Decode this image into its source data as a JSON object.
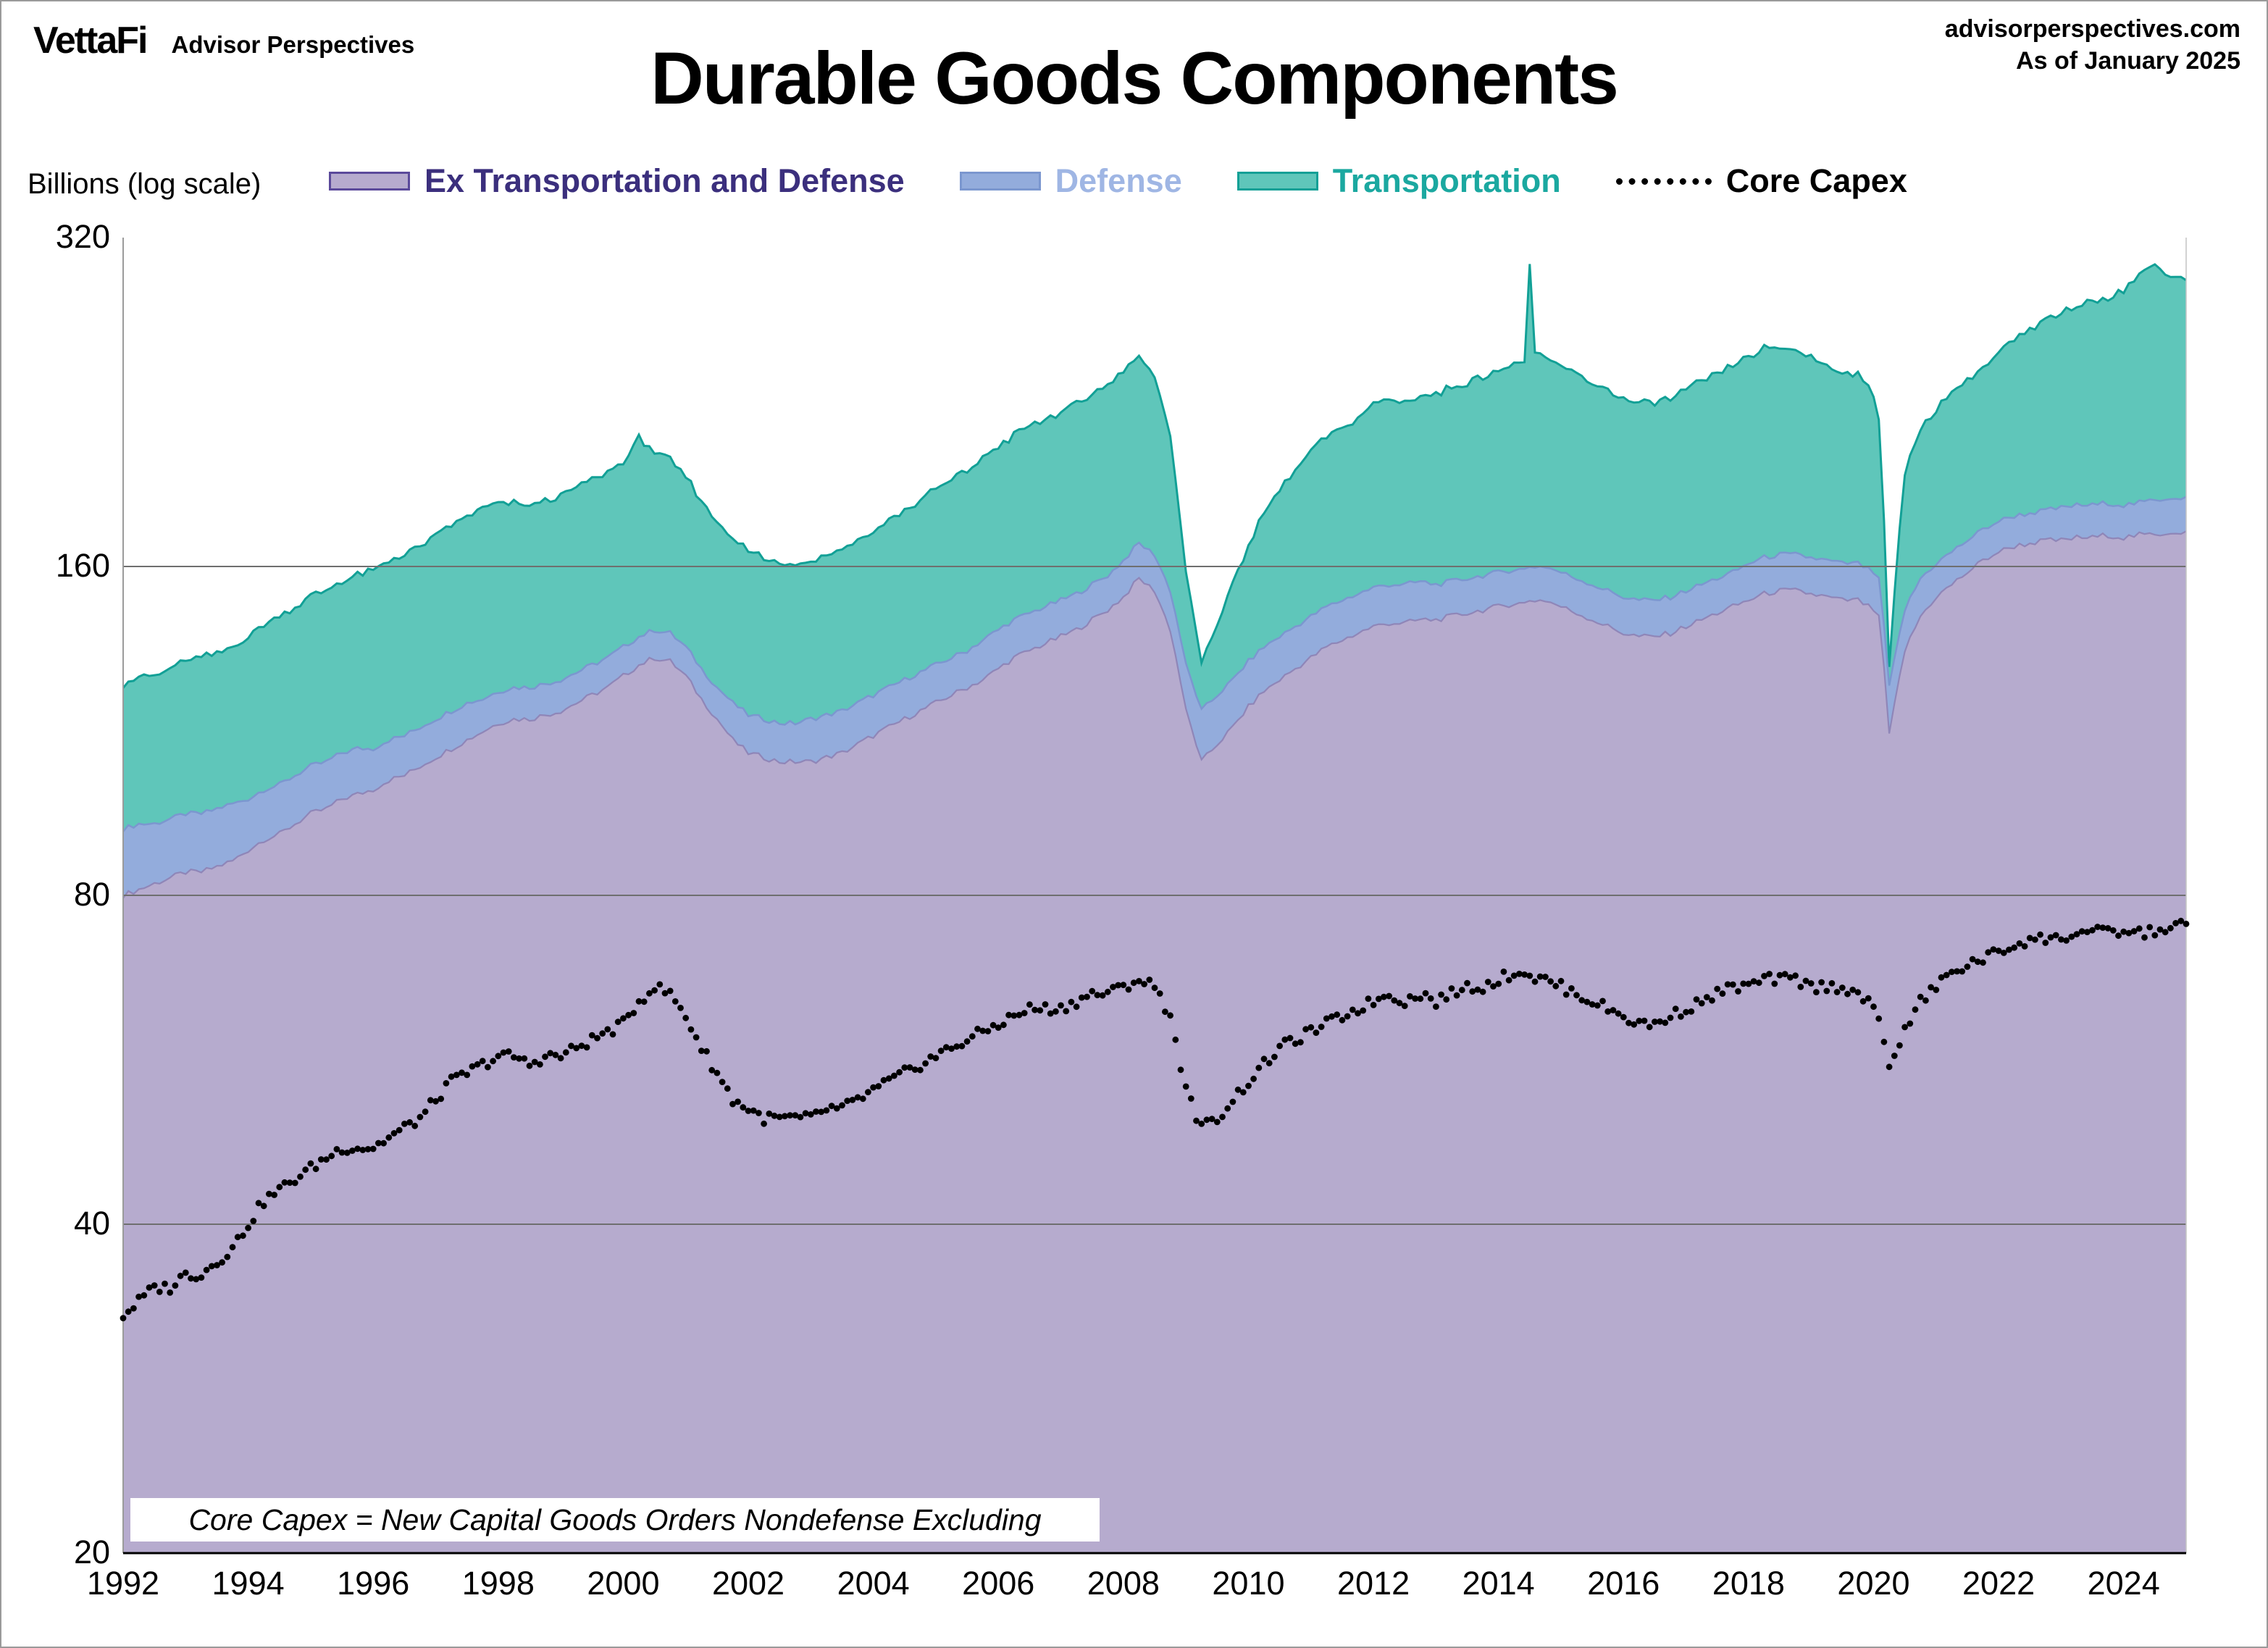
{
  "header": {
    "logo": "VettaFi",
    "logo_sub": "Advisor Perspectives",
    "title": "Durable Goods Components",
    "site": "advisorperspectives.com",
    "as_of": "As of January 2025"
  },
  "axis_label": "Billions (log scale)",
  "legend": [
    {
      "label": "Ex Transportation and Defense",
      "fill": "#b6abce",
      "border": "#5b4a9b",
      "text_color": "#3b2f7d"
    },
    {
      "label": "Defense",
      "fill": "#93acdc",
      "border": "#7b97cf",
      "text_color": "#9fb6e4"
    },
    {
      "label": "Transportation",
      "fill": "#5fc6ba",
      "border": "#12a096",
      "text_color": "#1ba8a0"
    },
    {
      "label": "Core Capex",
      "text_color": "#000000"
    }
  ],
  "annotation": {
    "text": "Core Capex = New Capital Goods Orders Nondefense Excluding"
  },
  "chart_data": {
    "type": "area",
    "stacked": true,
    "log_scale": true,
    "title": "Durable Goods Components",
    "ylabel": "Billions (log scale)",
    "ylim": [
      20,
      320
    ],
    "xlim": [
      1992,
      2025.0
    ],
    "yticks": [
      20,
      40,
      80,
      160,
      320
    ],
    "xticks": [
      1992,
      1994,
      1996,
      1998,
      2000,
      2002,
      2004,
      2006,
      2008,
      2010,
      2012,
      2014,
      2016,
      2018,
      2020,
      2022,
      2024
    ],
    "units": "billions of dollars",
    "x": [
      1992,
      1992.25,
      1992.5,
      1992.75,
      1993,
      1993.25,
      1993.5,
      1993.75,
      1994,
      1994.25,
      1994.5,
      1994.75,
      1995,
      1995.25,
      1995.5,
      1995.75,
      1996,
      1996.25,
      1996.5,
      1996.75,
      1997,
      1997.25,
      1997.5,
      1997.75,
      1998,
      1998.25,
      1998.5,
      1998.75,
      1999,
      1999.25,
      1999.5,
      1999.75,
      2000,
      2000.25,
      2000.5,
      2000.75,
      2001,
      2001.25,
      2001.5,
      2001.75,
      2002,
      2002.25,
      2002.5,
      2002.75,
      2003,
      2003.25,
      2003.5,
      2003.75,
      2004,
      2004.25,
      2004.5,
      2004.75,
      2005,
      2005.25,
      2005.5,
      2005.75,
      2006,
      2006.25,
      2006.5,
      2006.75,
      2007,
      2007.25,
      2007.5,
      2007.75,
      2008,
      2008.25,
      2008.5,
      2008.75,
      2009,
      2009.25,
      2009.5,
      2009.75,
      2010,
      2010.25,
      2010.5,
      2010.75,
      2011,
      2011.25,
      2011.5,
      2011.75,
      2012,
      2012.25,
      2012.5,
      2012.75,
      2013,
      2013.25,
      2013.5,
      2013.75,
      2014,
      2014.25,
      2014.42,
      2014.5,
      2014.58,
      2014.75,
      2015,
      2015.25,
      2015.5,
      2015.75,
      2016,
      2016.25,
      2016.5,
      2016.75,
      2017,
      2017.25,
      2017.5,
      2017.75,
      2018,
      2018.25,
      2018.5,
      2018.75,
      2019,
      2019.25,
      2019.5,
      2019.75,
      2020,
      2020.1,
      2020.25,
      2020.5,
      2020.75,
      2021,
      2021.25,
      2021.5,
      2021.75,
      2022,
      2022.25,
      2022.5,
      2022.75,
      2023,
      2023.25,
      2023.5,
      2023.75,
      2024,
      2024.25,
      2024.5,
      2024.75,
      2025
    ],
    "series": [
      {
        "name": "Ex Transportation and Defense",
        "type": "area",
        "color": "#b6abce",
        "edge": "#8f86b8",
        "jitter": 0.006,
        "values": [
          80,
          81,
          82,
          83,
          84,
          84,
          85,
          86,
          88,
          90,
          91,
          93,
          95,
          96,
          98,
          99,
          100,
          102,
          103,
          105,
          107,
          109,
          111,
          113,
          115,
          116,
          116,
          117,
          118,
          120,
          122,
          124,
          127,
          130,
          132,
          131,
          127,
          121,
          116,
          111,
          108,
          107,
          106,
          106,
          106,
          107,
          108,
          110,
          112,
          114,
          116,
          118,
          120,
          122,
          124,
          126,
          129,
          132,
          134,
          136,
          138,
          140,
          143,
          146,
          150,
          156,
          152,
          140,
          118,
          106,
          110,
          114,
          119,
          123,
          126,
          129,
          132,
          135,
          137,
          139,
          141,
          142,
          142,
          143,
          143,
          144,
          145,
          146,
          147,
          148,
          148,
          149,
          149,
          149,
          147,
          145,
          143,
          141,
          139,
          138,
          138,
          139,
          141,
          143,
          145,
          147,
          149,
          151,
          152,
          152,
          151,
          150,
          149,
          149,
          146,
          143,
          112,
          134,
          144,
          150,
          154,
          158,
          162,
          165,
          167,
          168,
          169,
          169,
          170,
          170,
          171,
          170,
          171,
          171,
          172,
          172
        ]
      },
      {
        "name": "Defense",
        "type": "area",
        "color": "#93acdc",
        "edge": "#7b97cf",
        "jitter": 0.004,
        "values": [
          12,
          12,
          11,
          11,
          11,
          11,
          11,
          11,
          10,
          10,
          10,
          10,
          10,
          10,
          10,
          10,
          9,
          9,
          9,
          9,
          9,
          9,
          9,
          8,
          8,
          8,
          8,
          8,
          8,
          8,
          8,
          8,
          8,
          8,
          8,
          8,
          8,
          8,
          8,
          9,
          9,
          9,
          9,
          9,
          10,
          10,
          10,
          10,
          10,
          10,
          10,
          10,
          10,
          10,
          10,
          11,
          11,
          11,
          11,
          11,
          11,
          11,
          11,
          11,
          12,
          12,
          12,
          12,
          12,
          12,
          12,
          12,
          12,
          12,
          12,
          12,
          12,
          12,
          12,
          12,
          12,
          12,
          12,
          12,
          11,
          11,
          11,
          11,
          11,
          11,
          11,
          11,
          11,
          11,
          11,
          11,
          11,
          11,
          11,
          11,
          11,
          11,
          11,
          11,
          11,
          11,
          12,
          12,
          12,
          12,
          12,
          12,
          12,
          12,
          12,
          12,
          12,
          12,
          12,
          11,
          11,
          11,
          11,
          11,
          11,
          11,
          11,
          12,
          12,
          12,
          12,
          12,
          12,
          13,
          13,
          13
        ]
      },
      {
        "name": "Transportation",
        "type": "area",
        "color": "#5fc6ba",
        "edge": "#12a096",
        "jitter": 0.02,
        "values": [
          33,
          34,
          34,
          35,
          36,
          37,
          37,
          38,
          40,
          42,
          43,
          44,
          45,
          46,
          47,
          48,
          50,
          51,
          52,
          53,
          55,
          57,
          58,
          60,
          60,
          59,
          58,
          59,
          60,
          61,
          62,
          63,
          64,
          72,
          64,
          61,
          58,
          55,
          52,
          50,
          48,
          47,
          46,
          46,
          46,
          47,
          48,
          49,
          50,
          52,
          54,
          56,
          58,
          60,
          62,
          64,
          66,
          68,
          70,
          71,
          72,
          74,
          76,
          78,
          80,
          82,
          74,
          58,
          28,
          12,
          20,
          28,
          36,
          44,
          50,
          55,
          60,
          63,
          65,
          68,
          72,
          74,
          72,
          74,
          76,
          78,
          80,
          82,
          84,
          86,
          88,
          142,
          90,
          88,
          86,
          84,
          82,
          80,
          78,
          76,
          77,
          78,
          80,
          82,
          84,
          86,
          88,
          90,
          89,
          88,
          86,
          82,
          80,
          78,
          72,
          60,
          5,
          48,
          58,
          62,
          66,
          68,
          70,
          75,
          80,
          84,
          88,
          92,
          95,
          98,
          100,
          105,
          112,
          118,
          112,
          108
        ]
      },
      {
        "name": "Core Capex",
        "type": "dots",
        "color": "#000000",
        "jitter": 0.012,
        "values": [
          33,
          34,
          35,
          35,
          36,
          36,
          37,
          38,
          40,
          42,
          43,
          44,
          45,
          46,
          47,
          47,
          47,
          48,
          49,
          50,
          52,
          54,
          55,
          56,
          57,
          57,
          56,
          57,
          57,
          58,
          59,
          60,
          61,
          64,
          66,
          65,
          62,
          58,
          55,
          52,
          51,
          50,
          50,
          50,
          50,
          51,
          51,
          52,
          53,
          54,
          55,
          56,
          57,
          58,
          59,
          60,
          61,
          62,
          63,
          63,
          63,
          64,
          65,
          65,
          66,
          67,
          66,
          62,
          53,
          49,
          50,
          52,
          54,
          56,
          58,
          59,
          60,
          61,
          62,
          63,
          64,
          65,
          64,
          65,
          64,
          65,
          66,
          66,
          67,
          68,
          68,
          68,
          67,
          67,
          66,
          65,
          64,
          63,
          62,
          61,
          61,
          62,
          63,
          64,
          65,
          66,
          66,
          67,
          67,
          67,
          66,
          66,
          66,
          65,
          63,
          61,
          56,
          60,
          64,
          66,
          68,
          69,
          70,
          71,
          72,
          73,
          73,
          73,
          74,
          74,
          74,
          74,
          74,
          74,
          75,
          75
        ]
      }
    ]
  }
}
